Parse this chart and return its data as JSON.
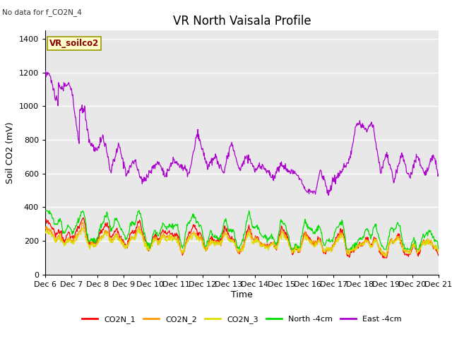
{
  "title": "VR North Vaisala Profile",
  "subtitle": "No data for f_CO2N_4",
  "ylabel": "Soil CO2 (mV)",
  "xlabel": "Time",
  "box_label": "VR_soilco2",
  "ylim": [
    0,
    1450
  ],
  "yticks": [
    0,
    200,
    400,
    600,
    800,
    1000,
    1200,
    1400
  ],
  "xlim": [
    0,
    15
  ],
  "xtick_labels": [
    "Dec 6",
    "Dec 7",
    "Dec 8",
    "Dec 9",
    "Dec 10",
    "Dec 11",
    "Dec 12",
    "Dec 13",
    "Dec 14",
    "Dec 15",
    "Dec 16",
    "Dec 17",
    "Dec 18",
    "Dec 19",
    "Dec 20",
    "Dec 21"
  ],
  "colors": {
    "CO2N_1": "#ff0000",
    "CO2N_2": "#ff9900",
    "CO2N_3": "#dddd00",
    "North_4cm": "#00dd00",
    "East_4cm": "#aa00cc"
  },
  "legend_labels": [
    "CO2N_1",
    "CO2N_2",
    "CO2N_3",
    "North -4cm",
    "East -4cm"
  ],
  "background_color": "#ffffff",
  "plot_bg_color": "#e8e8e8",
  "grid_color": "#ffffff",
  "title_fontsize": 12,
  "axis_fontsize": 9,
  "tick_fontsize": 8
}
